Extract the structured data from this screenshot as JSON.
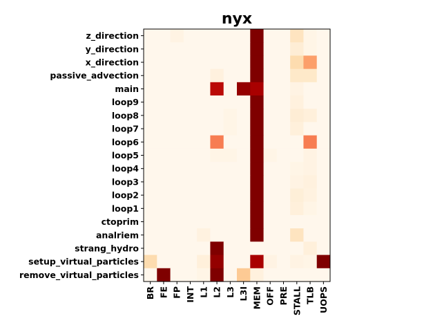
{
  "chart_data": {
    "type": "heatmap",
    "title": "nyx",
    "xlabel": "",
    "ylabel": "",
    "x_categories": [
      "BR",
      "FE",
      "FP",
      "INT",
      "L1",
      "L2",
      "L3",
      "L3I",
      "MEM",
      "OFF",
      "PRE",
      "STALL",
      "TLB",
      "UOPS"
    ],
    "y_categories": [
      "z_direction",
      "y_direction",
      "x_direction",
      "passive_advection",
      "main",
      "loop9",
      "loop8",
      "loop7",
      "loop6",
      "loop5",
      "loop4",
      "loop3",
      "loop2",
      "loop1",
      "ctoprim",
      "analriem",
      "strang_hydro",
      "setup_virtual_particles",
      "remove_virtual_particles"
    ],
    "value_range": [
      0,
      1
    ],
    "colormap": "OrRd",
    "values": [
      [
        0.0,
        0.0,
        0.03,
        0.0,
        0.0,
        0.0,
        0.0,
        0.0,
        1.0,
        0.0,
        0.0,
        0.15,
        0.02,
        0.0
      ],
      [
        0.0,
        0.0,
        0.0,
        0.0,
        0.0,
        0.0,
        0.0,
        0.0,
        1.0,
        0.0,
        0.0,
        0.08,
        0.02,
        0.0
      ],
      [
        0.0,
        0.0,
        0.0,
        0.0,
        0.0,
        0.0,
        0.0,
        0.0,
        1.0,
        0.0,
        0.0,
        0.2,
        0.45,
        0.0
      ],
      [
        0.0,
        0.0,
        0.0,
        0.0,
        0.0,
        0.05,
        0.0,
        0.0,
        1.0,
        0.0,
        0.0,
        0.12,
        0.12,
        0.0
      ],
      [
        0.0,
        0.0,
        0.0,
        0.0,
        0.0,
        0.85,
        0.0,
        0.95,
        0.9,
        0.0,
        0.0,
        0.03,
        0.0,
        0.0
      ],
      [
        0.0,
        0.0,
        0.0,
        0.0,
        0.0,
        0.0,
        0.0,
        0.0,
        1.0,
        0.0,
        0.0,
        0.05,
        0.0,
        0.0
      ],
      [
        0.0,
        0.0,
        0.0,
        0.0,
        0.0,
        0.0,
        0.02,
        0.0,
        1.0,
        0.0,
        0.0,
        0.08,
        0.06,
        0.0
      ],
      [
        0.0,
        0.0,
        0.0,
        0.0,
        0.0,
        0.0,
        0.02,
        0.0,
        1.0,
        0.0,
        0.0,
        0.06,
        0.0,
        0.0
      ],
      [
        0.0,
        0.0,
        0.0,
        0.0,
        0.0,
        0.55,
        0.0,
        0.0,
        1.0,
        0.0,
        0.0,
        0.0,
        0.55,
        0.0
      ],
      [
        0.0,
        0.0,
        0.0,
        0.0,
        0.0,
        0.02,
        0.02,
        0.0,
        1.0,
        0.02,
        0.0,
        0.0,
        0.03,
        0.0
      ],
      [
        0.0,
        0.0,
        0.0,
        0.0,
        0.0,
        0.0,
        0.0,
        0.0,
        1.0,
        0.0,
        0.0,
        0.02,
        0.03,
        0.0
      ],
      [
        0.0,
        0.0,
        0.0,
        0.0,
        0.0,
        0.0,
        0.0,
        0.0,
        1.0,
        0.0,
        0.0,
        0.03,
        0.05,
        0.0
      ],
      [
        0.0,
        0.0,
        0.0,
        0.0,
        0.0,
        0.0,
        0.0,
        0.0,
        1.0,
        0.0,
        0.0,
        0.07,
        0.04,
        0.0
      ],
      [
        0.0,
        0.0,
        0.0,
        0.0,
        0.0,
        0.0,
        0.0,
        0.0,
        1.0,
        0.0,
        0.0,
        0.06,
        0.02,
        0.0
      ],
      [
        0.0,
        0.0,
        0.0,
        0.0,
        0.0,
        0.0,
        0.0,
        0.0,
        1.0,
        0.0,
        0.0,
        0.0,
        0.0,
        0.0
      ],
      [
        0.0,
        0.0,
        0.0,
        0.0,
        0.04,
        0.0,
        0.0,
        0.0,
        1.0,
        0.0,
        0.0,
        0.15,
        0.0,
        0.0
      ],
      [
        0.0,
        0.0,
        0.0,
        0.0,
        0.0,
        1.0,
        0.0,
        0.0,
        0.0,
        0.0,
        0.0,
        0.0,
        0.06,
        0.0
      ],
      [
        0.2,
        0.0,
        0.0,
        0.0,
        0.06,
        0.95,
        0.0,
        0.0,
        0.9,
        0.03,
        0.0,
        0.03,
        0.02,
        1.0
      ],
      [
        0.0,
        1.0,
        0.0,
        0.0,
        0.02,
        1.0,
        0.0,
        0.3,
        0.05,
        0.0,
        0.0,
        0.0,
        0.0,
        0.0
      ]
    ]
  }
}
